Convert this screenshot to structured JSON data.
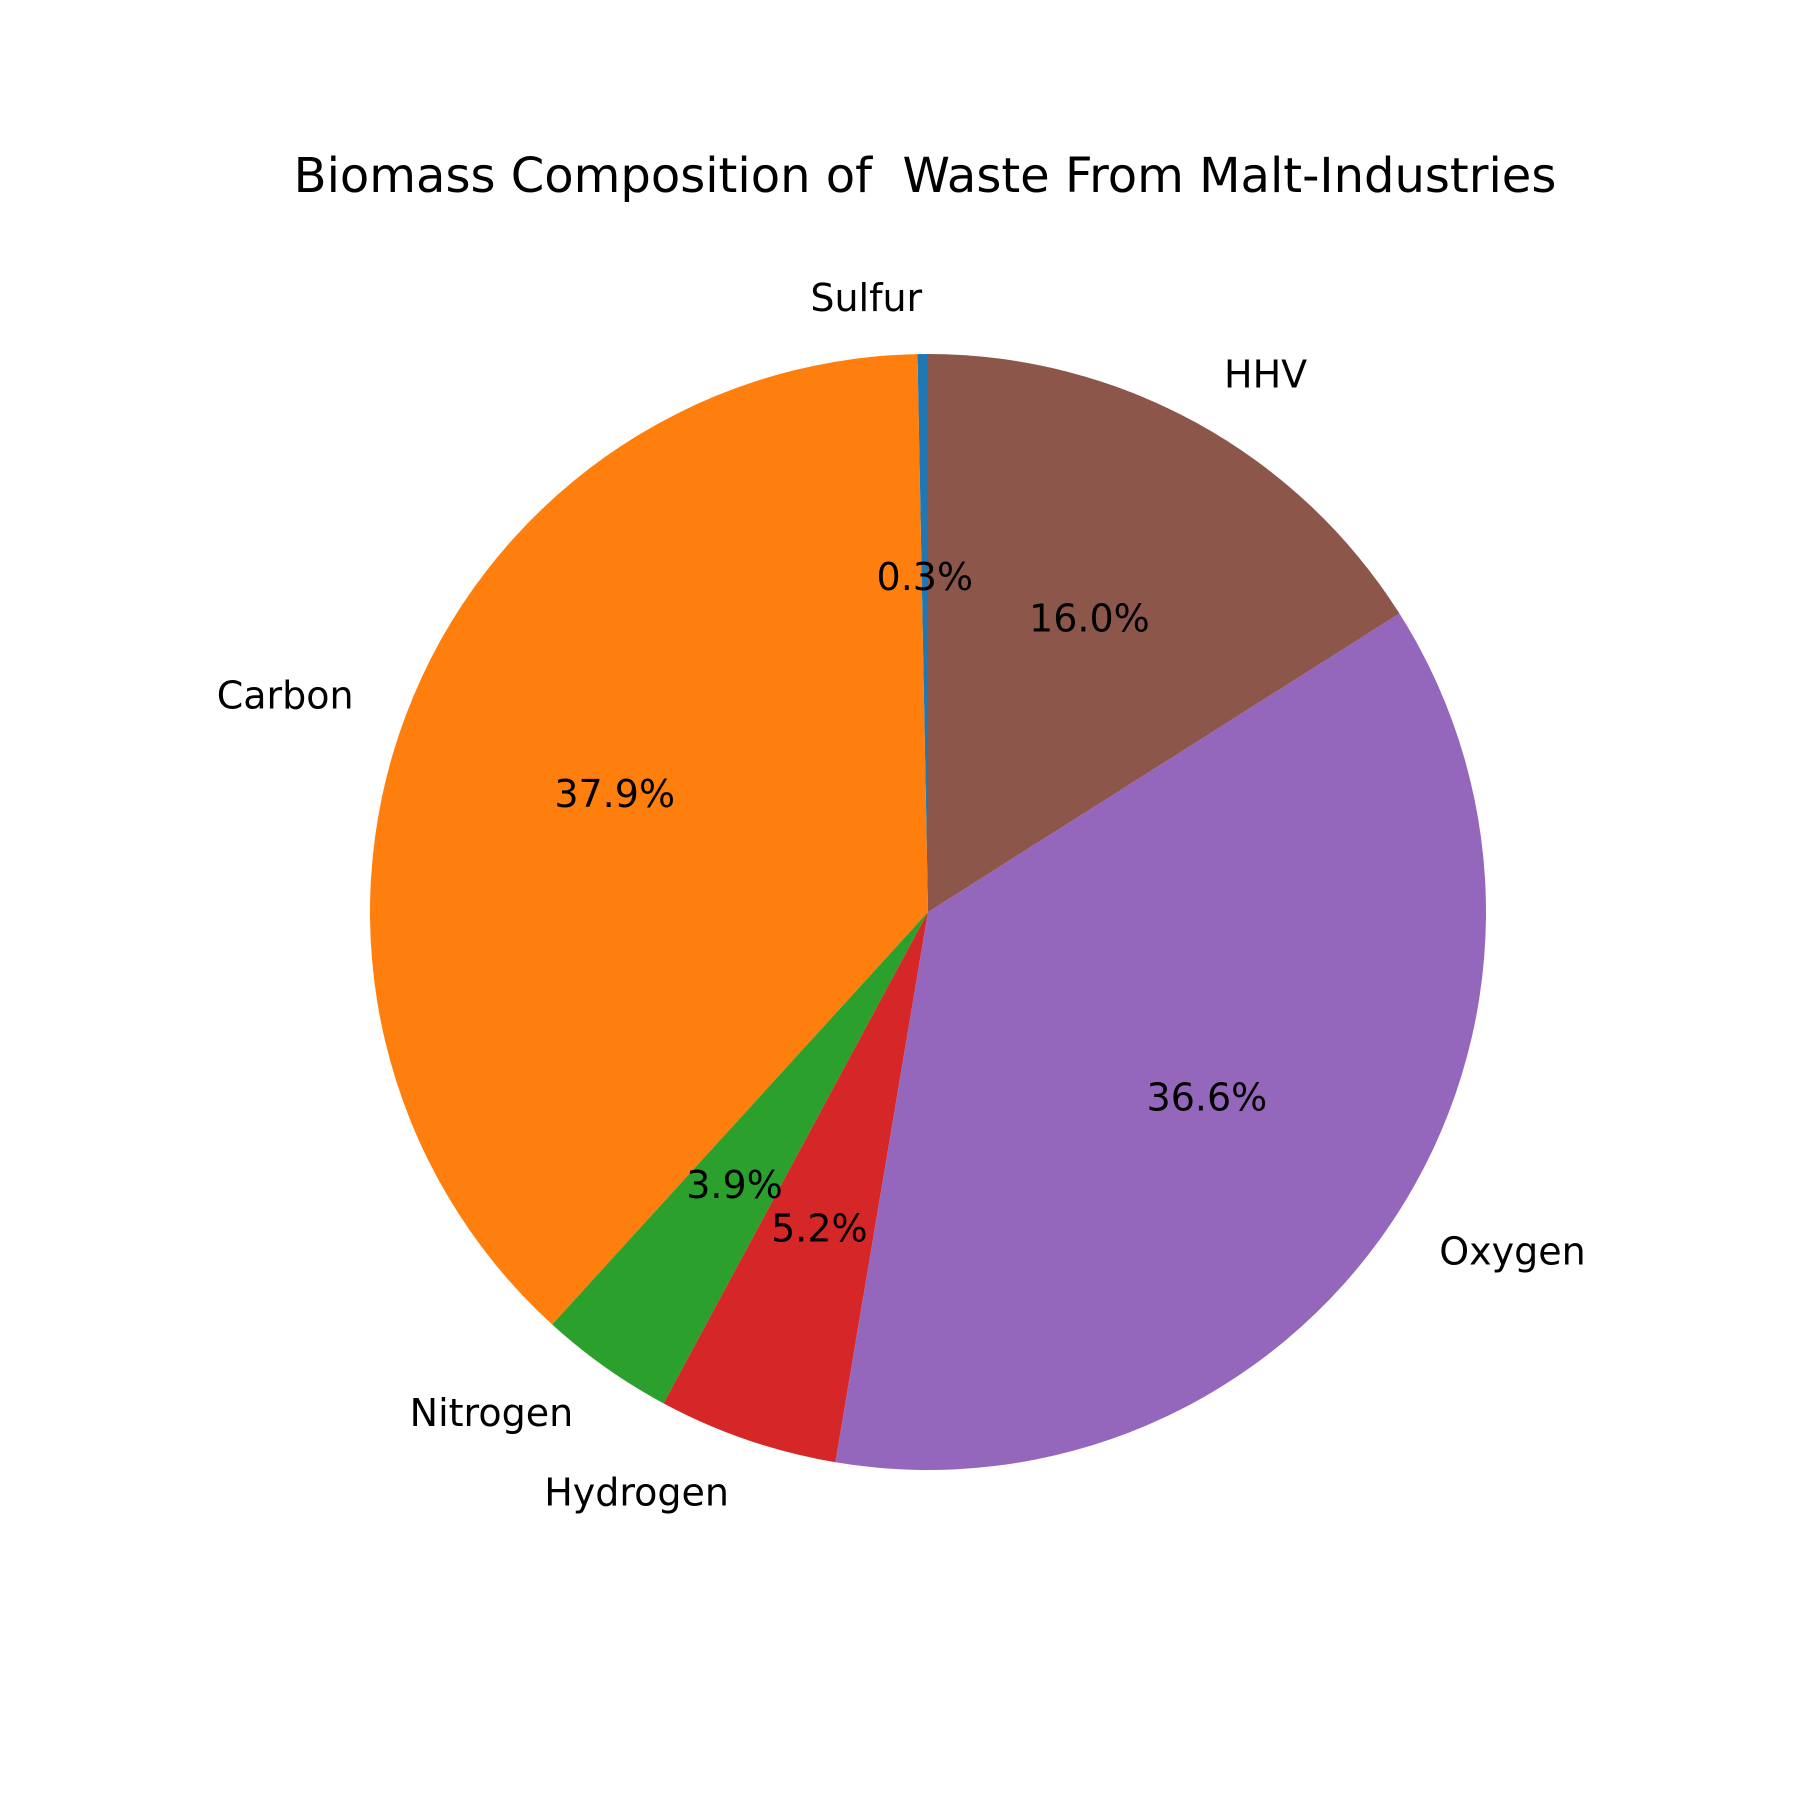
{
  "chart_data": {
    "type": "pie",
    "title": "Biomass Composition of  Waste From Malt-Industries",
    "start_angle_deg": 90,
    "direction": "counterclockwise",
    "slices": [
      {
        "label": "Sulfur",
        "value": 0.3,
        "pct_label": "0.3%",
        "color": "#1f77b4"
      },
      {
        "label": "Carbon",
        "value": 37.9,
        "pct_label": "37.9%",
        "color": "#ff7f0e"
      },
      {
        "label": "Nitrogen",
        "value": 3.9,
        "pct_label": "3.9%",
        "color": "#2ca02c"
      },
      {
        "label": "Hydrogen",
        "value": 5.2,
        "pct_label": "5.2%",
        "color": "#d62728"
      },
      {
        "label": "Oxygen",
        "value": 36.6,
        "pct_label": "36.6%",
        "color": "#9467bd"
      },
      {
        "label": "HHV",
        "value": 16.0,
        "pct_label": "16.0%",
        "color": "#8c564b"
      }
    ]
  }
}
